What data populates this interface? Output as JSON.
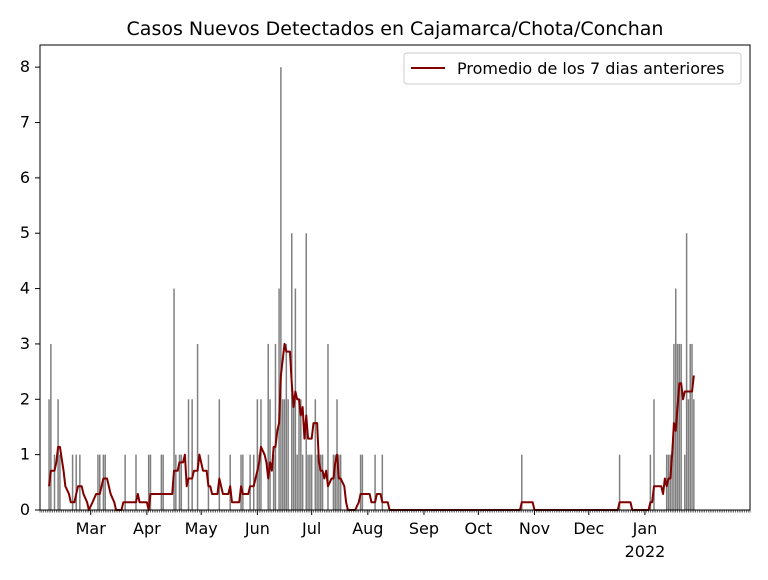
{
  "chart_data": {
    "type": "bar",
    "title": "Casos Nuevos Detectados en Cajamarca/Chota/Conchan",
    "xlabel": "",
    "ylabel": "",
    "ylim": [
      0,
      8.4
    ],
    "xlim": [
      "2021-02-01",
      "2022-02-28"
    ],
    "grid": false,
    "legend_position": "top-right",
    "x_ticks": [
      {
        "date": "2021-03-01",
        "label": "Mar"
      },
      {
        "date": "2021-04-01",
        "label": "Apr"
      },
      {
        "date": "2021-05-01",
        "label": "May"
      },
      {
        "date": "2021-06-01",
        "label": "Jun"
      },
      {
        "date": "2021-07-01",
        "label": "Jul"
      },
      {
        "date": "2021-08-01",
        "label": "Aug"
      },
      {
        "date": "2021-09-01",
        "label": "Sep"
      },
      {
        "date": "2021-10-01",
        "label": "Oct"
      },
      {
        "date": "2021-11-01",
        "label": "Nov"
      },
      {
        "date": "2021-12-01",
        "label": "Dec"
      },
      {
        "date": "2022-01-01",
        "label": "Jan"
      }
    ],
    "x_year_label": "2022",
    "y_ticks": [
      "0",
      "1",
      "2",
      "3",
      "4",
      "5",
      "6",
      "7",
      "8"
    ],
    "bar_color": "#808080",
    "line_color": "#800000",
    "series": [
      {
        "type": "bar",
        "points": [
          [
            "2021-02-06",
            2
          ],
          [
            "2021-02-07",
            3
          ],
          [
            "2021-02-09",
            1
          ],
          [
            "2021-02-11",
            2
          ],
          [
            "2021-02-12",
            1
          ],
          [
            "2021-02-19",
            1
          ],
          [
            "2021-02-21",
            1
          ],
          [
            "2021-02-23",
            1
          ],
          [
            "2021-03-05",
            1
          ],
          [
            "2021-03-06",
            1
          ],
          [
            "2021-03-08",
            1
          ],
          [
            "2021-03-09",
            1
          ],
          [
            "2021-03-20",
            1
          ],
          [
            "2021-03-26",
            1
          ],
          [
            "2021-04-02",
            1
          ],
          [
            "2021-04-03",
            1
          ],
          [
            "2021-04-09",
            1
          ],
          [
            "2021-04-10",
            1
          ],
          [
            "2021-04-16",
            4
          ],
          [
            "2021-04-17",
            1
          ],
          [
            "2021-04-19",
            1
          ],
          [
            "2021-04-20",
            1
          ],
          [
            "2021-04-24",
            2
          ],
          [
            "2021-04-26",
            2
          ],
          [
            "2021-04-29",
            3
          ],
          [
            "2021-05-05",
            1
          ],
          [
            "2021-05-11",
            2
          ],
          [
            "2021-05-17",
            1
          ],
          [
            "2021-05-23",
            1
          ],
          [
            "2021-05-24",
            1
          ],
          [
            "2021-05-28",
            1
          ],
          [
            "2021-05-30",
            1
          ],
          [
            "2021-06-01",
            2
          ],
          [
            "2021-06-02",
            1
          ],
          [
            "2021-06-03",
            2
          ],
          [
            "2021-06-07",
            3
          ],
          [
            "2021-06-08",
            2
          ],
          [
            "2021-06-10",
            1
          ],
          [
            "2021-06-11",
            3
          ],
          [
            "2021-06-13",
            4
          ],
          [
            "2021-06-14",
            8
          ],
          [
            "2021-06-15",
            2
          ],
          [
            "2021-06-16",
            2
          ],
          [
            "2021-06-17",
            3
          ],
          [
            "2021-06-18",
            2
          ],
          [
            "2021-06-20",
            5
          ],
          [
            "2021-06-21",
            2
          ],
          [
            "2021-06-22",
            4
          ],
          [
            "2021-06-23",
            1
          ],
          [
            "2021-06-24",
            2
          ],
          [
            "2021-06-25",
            2
          ],
          [
            "2021-06-26",
            1
          ],
          [
            "2021-06-28",
            5
          ],
          [
            "2021-06-29",
            1
          ],
          [
            "2021-06-30",
            1
          ],
          [
            "2021-07-01",
            1
          ],
          [
            "2021-07-03",
            2
          ],
          [
            "2021-07-04",
            1
          ],
          [
            "2021-07-05",
            1
          ],
          [
            "2021-07-06",
            1
          ],
          [
            "2021-07-07",
            1
          ],
          [
            "2021-07-10",
            3
          ],
          [
            "2021-07-13",
            1
          ],
          [
            "2021-07-14",
            1
          ],
          [
            "2021-07-15",
            2
          ],
          [
            "2021-07-16",
            1
          ],
          [
            "2021-07-17",
            1
          ],
          [
            "2021-07-28",
            1
          ],
          [
            "2021-07-29",
            1
          ],
          [
            "2021-08-05",
            1
          ],
          [
            "2021-08-09",
            1
          ],
          [
            "2021-10-25",
            1
          ],
          [
            "2021-12-18",
            1
          ],
          [
            "2022-01-04",
            1
          ],
          [
            "2022-01-06",
            2
          ],
          [
            "2022-01-13",
            1
          ],
          [
            "2022-01-14",
            1
          ],
          [
            "2022-01-15",
            1
          ],
          [
            "2022-01-16",
            1
          ],
          [
            "2022-01-17",
            3
          ],
          [
            "2022-01-18",
            4
          ],
          [
            "2022-01-19",
            3
          ],
          [
            "2022-01-20",
            3
          ],
          [
            "2022-01-21",
            3
          ],
          [
            "2022-01-23",
            1
          ],
          [
            "2022-01-24",
            5
          ],
          [
            "2022-01-25",
            2
          ],
          [
            "2022-01-26",
            3
          ],
          [
            "2022-01-27",
            3
          ],
          [
            "2022-01-28",
            2
          ]
        ]
      },
      {
        "type": "line",
        "name": "Promedio de los 7 dias anteriores",
        "points": [
          [
            "2021-02-06",
            0.43
          ],
          [
            "2021-02-07",
            0.71
          ],
          [
            "2021-02-09",
            0.71
          ],
          [
            "2021-02-10",
            0.86
          ],
          [
            "2021-02-11",
            1.14
          ],
          [
            "2021-02-12",
            1.14
          ],
          [
            "2021-02-14",
            0.71
          ],
          [
            "2021-02-15",
            0.43
          ],
          [
            "2021-02-17",
            0.29
          ],
          [
            "2021-02-18",
            0.14
          ],
          [
            "2021-02-20",
            0.14
          ],
          [
            "2021-02-21",
            0.29
          ],
          [
            "2021-02-22",
            0.43
          ],
          [
            "2021-02-24",
            0.43
          ],
          [
            "2021-02-25",
            0.29
          ],
          [
            "2021-02-27",
            0.14
          ],
          [
            "2021-02-28",
            0.0
          ],
          [
            "2021-03-02",
            0.14
          ],
          [
            "2021-03-04",
            0.29
          ],
          [
            "2021-03-06",
            0.29
          ],
          [
            "2021-03-07",
            0.43
          ],
          [
            "2021-03-08",
            0.57
          ],
          [
            "2021-03-10",
            0.57
          ],
          [
            "2021-03-12",
            0.29
          ],
          [
            "2021-03-14",
            0.14
          ],
          [
            "2021-03-15",
            0.0
          ],
          [
            "2021-03-18",
            0.0
          ],
          [
            "2021-03-19",
            0.14
          ],
          [
            "2021-03-26",
            0.14
          ],
          [
            "2021-03-27",
            0.29
          ],
          [
            "2021-03-28",
            0.14
          ],
          [
            "2021-04-01",
            0.14
          ],
          [
            "2021-04-02",
            0.0
          ],
          [
            "2021-04-03",
            0.29
          ],
          [
            "2021-04-15",
            0.29
          ],
          [
            "2021-04-16",
            0.71
          ],
          [
            "2021-04-18",
            0.71
          ],
          [
            "2021-04-19",
            0.86
          ],
          [
            "2021-04-21",
            0.86
          ],
          [
            "2021-04-22",
            1.0
          ],
          [
            "2021-04-23",
            0.43
          ],
          [
            "2021-04-24",
            0.57
          ],
          [
            "2021-04-26",
            0.57
          ],
          [
            "2021-04-27",
            0.71
          ],
          [
            "2021-04-29",
            0.71
          ],
          [
            "2021-04-30",
            1.0
          ],
          [
            "2021-05-02",
            0.71
          ],
          [
            "2021-05-04",
            0.71
          ],
          [
            "2021-05-05",
            0.43
          ],
          [
            "2021-05-06",
            0.43
          ],
          [
            "2021-05-07",
            0.29
          ],
          [
            "2021-05-10",
            0.29
          ],
          [
            "2021-05-11",
            0.57
          ],
          [
            "2021-05-13",
            0.29
          ],
          [
            "2021-05-16",
            0.29
          ],
          [
            "2021-05-17",
            0.43
          ],
          [
            "2021-05-18",
            0.14
          ],
          [
            "2021-05-22",
            0.14
          ],
          [
            "2021-05-23",
            0.43
          ],
          [
            "2021-05-24",
            0.29
          ],
          [
            "2021-05-27",
            0.29
          ],
          [
            "2021-05-28",
            0.43
          ],
          [
            "2021-05-30",
            0.43
          ],
          [
            "2021-06-01",
            0.71
          ],
          [
            "2021-06-02",
            0.86
          ],
          [
            "2021-06-03",
            1.14
          ],
          [
            "2021-06-05",
            1.0
          ],
          [
            "2021-06-06",
            0.86
          ],
          [
            "2021-06-07",
            0.57
          ],
          [
            "2021-06-08",
            0.86
          ],
          [
            "2021-06-09",
            0.71
          ],
          [
            "2021-06-10",
            1.14
          ],
          [
            "2021-06-11",
            1.14
          ],
          [
            "2021-06-12",
            1.43
          ],
          [
            "2021-06-13",
            1.57
          ],
          [
            "2021-06-14",
            2.43
          ],
          [
            "2021-06-15",
            2.71
          ],
          [
            "2021-06-16",
            3.0
          ],
          [
            "2021-06-17",
            2.86
          ],
          [
            "2021-06-19",
            2.86
          ],
          [
            "2021-06-20",
            2.29
          ],
          [
            "2021-06-21",
            1.86
          ],
          [
            "2021-06-22",
            2.14
          ],
          [
            "2021-06-23",
            2.0
          ],
          [
            "2021-06-24",
            2.0
          ],
          [
            "2021-06-25",
            1.71
          ],
          [
            "2021-06-26",
            1.86
          ],
          [
            "2021-06-27",
            1.29
          ],
          [
            "2021-06-28",
            1.71
          ],
          [
            "2021-06-29",
            1.29
          ],
          [
            "2021-07-01",
            1.29
          ],
          [
            "2021-07-02",
            1.57
          ],
          [
            "2021-07-04",
            1.57
          ],
          [
            "2021-07-05",
            0.86
          ],
          [
            "2021-07-06",
            0.71
          ],
          [
            "2021-07-07",
            0.71
          ],
          [
            "2021-07-08",
            0.57
          ],
          [
            "2021-07-09",
            0.71
          ],
          [
            "2021-07-10",
            0.43
          ],
          [
            "2021-07-12",
            0.57
          ],
          [
            "2021-07-13",
            0.57
          ],
          [
            "2021-07-14",
            0.86
          ],
          [
            "2021-07-15",
            1.0
          ],
          [
            "2021-07-16",
            0.57
          ],
          [
            "2021-07-17",
            0.57
          ],
          [
            "2021-07-19",
            0.43
          ],
          [
            "2021-07-20",
            0.14
          ],
          [
            "2021-07-21",
            0.0
          ],
          [
            "2021-07-25",
            0.0
          ],
          [
            "2021-07-27",
            0.14
          ],
          [
            "2021-07-28",
            0.29
          ],
          [
            "2021-08-02",
            0.29
          ],
          [
            "2021-08-03",
            0.14
          ],
          [
            "2021-08-05",
            0.14
          ],
          [
            "2021-08-06",
            0.29
          ],
          [
            "2021-08-08",
            0.29
          ],
          [
            "2021-08-09",
            0.14
          ],
          [
            "2021-08-11",
            0.14
          ],
          [
            "2021-08-12",
            0.14
          ],
          [
            "2021-08-13",
            0.0
          ],
          [
            "2021-10-24",
            0.0
          ],
          [
            "2021-10-25",
            0.14
          ],
          [
            "2021-10-31",
            0.14
          ],
          [
            "2021-11-01",
            0.0
          ],
          [
            "2021-12-17",
            0.0
          ],
          [
            "2021-12-18",
            0.14
          ],
          [
            "2021-12-24",
            0.14
          ],
          [
            "2021-12-25",
            0.0
          ],
          [
            "2022-01-03",
            0.0
          ],
          [
            "2022-01-04",
            0.14
          ],
          [
            "2022-01-05",
            0.14
          ],
          [
            "2022-01-06",
            0.43
          ],
          [
            "2022-01-09",
            0.43
          ],
          [
            "2022-01-10",
            0.43
          ],
          [
            "2022-01-11",
            0.29
          ],
          [
            "2022-01-12",
            0.57
          ],
          [
            "2022-01-13",
            0.43
          ],
          [
            "2022-01-14",
            0.57
          ],
          [
            "2022-01-15",
            0.57
          ],
          [
            "2022-01-16",
            1.0
          ],
          [
            "2022-01-17",
            1.57
          ],
          [
            "2022-01-18",
            1.43
          ],
          [
            "2022-01-19",
            1.86
          ],
          [
            "2022-01-20",
            2.29
          ],
          [
            "2022-01-21",
            2.29
          ],
          [
            "2022-01-22",
            2.0
          ],
          [
            "2022-01-23",
            2.14
          ],
          [
            "2022-01-24",
            2.14
          ],
          [
            "2022-01-27",
            2.14
          ],
          [
            "2022-01-28",
            2.43
          ]
        ]
      }
    ]
  }
}
